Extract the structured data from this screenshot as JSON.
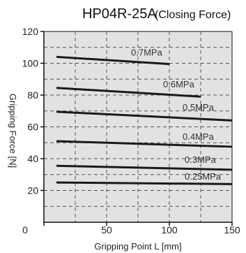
{
  "chart_data": {
    "type": "line",
    "title": "HP04R-25A",
    "subtitle": "(Closing Force)",
    "xlabel": "Gripping Point L [mm]",
    "ylabel": "Gripping Force [N]",
    "xlim": [
      0,
      150
    ],
    "ylim": [
      0,
      120
    ],
    "x_ticks": [
      0,
      50,
      100,
      150
    ],
    "y_ticks": [
      20,
      40,
      60,
      80,
      100,
      120
    ],
    "grid": true,
    "plot_background": "#e2e2e2",
    "line_color": "#1a1a1a",
    "series": [
      {
        "name": "0.7MPa",
        "x": [
          10,
          100
        ],
        "values": [
          104,
          99.5
        ]
      },
      {
        "name": "0.6MPa",
        "x": [
          10,
          125
        ],
        "values": [
          84.5,
          79
        ]
      },
      {
        "name": "0.5MPa",
        "x": [
          10,
          150
        ],
        "values": [
          69.5,
          64
        ]
      },
      {
        "name": "0.4MPa",
        "x": [
          10,
          150
        ],
        "values": [
          51,
          47.5
        ]
      },
      {
        "name": "0.3MPa",
        "x": [
          10,
          150
        ],
        "values": [
          35.5,
          33
        ]
      },
      {
        "name": "0.25MPa",
        "x": [
          10,
          150
        ],
        "values": [
          25,
          24
        ]
      }
    ]
  }
}
